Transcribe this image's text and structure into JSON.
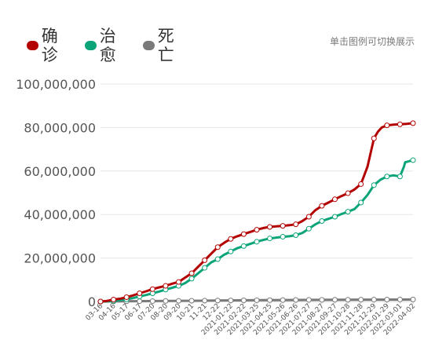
{
  "legend": {
    "items": [
      {
        "label": "确诊",
        "color": "#b30000"
      },
      {
        "label": "治愈",
        "color": "#0aa478"
      },
      {
        "label": "死亡",
        "color": "#7a7a7a"
      }
    ],
    "hint": "单击图例可切换展示"
  },
  "chart_data": {
    "type": "line",
    "y_ticks": [
      "0",
      "20,000,000",
      "40,000,000",
      "60,000,000",
      "80,000,000",
      "100,000,000"
    ],
    "ylim": [
      0,
      100000000
    ],
    "grid": true,
    "legend_position": "top-left",
    "x_labels": [
      "03-16",
      "04-16",
      "05-17",
      "06-17",
      "07-20",
      "08-20",
      "09-20",
      "10-21",
      "11-21",
      "12-22",
      "2021-01-22",
      "2021-02-22",
      "2021-03-25",
      "2021-04-25",
      "2021-05-26",
      "2021-06-26",
      "2021-07-27",
      "2021-08-27",
      "2021-09-27",
      "2021-10-28",
      "2021-11-28",
      "2021-12-29",
      "2022-01-29",
      "2022-03-01",
      "2022-04-02"
    ],
    "series": [
      {
        "name": "确诊",
        "color": "#b30000",
        "x": [
          0,
          0.5,
          1,
          1.5,
          2,
          2.5,
          3,
          3.5,
          4,
          4.5,
          5,
          5.5,
          6,
          6.5,
          7,
          7.5,
          8,
          8.5,
          9,
          9.5,
          10,
          10.5,
          11,
          11.5,
          12,
          12.5,
          13,
          13.5,
          14,
          14.5,
          15,
          15.5,
          16,
          16.5,
          17,
          17.5,
          18,
          18.5,
          19,
          19.5,
          20,
          20.5,
          21,
          21.3,
          21.6,
          22,
          22.5,
          23,
          23.5,
          24
        ],
        "values": [
          0,
          300000,
          900000,
          1300000,
          2000000,
          2800000,
          3800000,
          4700000,
          5700000,
          6500000,
          7200000,
          8200000,
          9000000,
          11000000,
          13000000,
          16000000,
          19000000,
          22000000,
          25000000,
          27000000,
          28800000,
          30000000,
          31000000,
          32000000,
          33000000,
          33800000,
          34300000,
          34600000,
          34800000,
          35100000,
          35500000,
          37000000,
          39000000,
          42000000,
          44000000,
          45500000,
          47000000,
          48500000,
          49800000,
          51500000,
          54000000,
          62000000,
          75000000,
          78000000,
          80000000,
          81000000,
          81300000,
          81500000,
          81700000,
          82000000
        ],
        "markers_x": [
          0,
          1,
          2,
          3,
          4,
          5,
          6,
          7,
          8,
          9,
          10,
          11,
          12,
          13,
          14,
          15,
          16,
          17,
          18,
          19,
          20,
          21,
          22,
          23,
          24
        ],
        "markers": [
          0,
          900000,
          2000000,
          3800000,
          5700000,
          7200000,
          9000000,
          13000000,
          19000000,
          25000000,
          28800000,
          31000000,
          33000000,
          34300000,
          34800000,
          35500000,
          39000000,
          44000000,
          47000000,
          49800000,
          54000000,
          75000000,
          81000000,
          81500000,
          82000000
        ]
      },
      {
        "name": "治愈",
        "color": "#0aa478",
        "x": [
          0,
          0.5,
          1,
          1.5,
          2,
          2.5,
          3,
          3.5,
          4,
          4.5,
          5,
          5.5,
          6,
          6.5,
          7,
          7.5,
          8,
          8.5,
          9,
          9.5,
          10,
          10.5,
          11,
          11.5,
          12,
          12.5,
          13,
          13.5,
          14,
          14.5,
          15,
          15.5,
          16,
          16.5,
          17,
          17.5,
          18,
          18.5,
          19,
          19.5,
          20,
          20.5,
          21,
          21.5,
          22,
          22.5,
          23,
          23.3,
          23.4,
          24
        ],
        "values": [
          0,
          100000,
          300000,
          600000,
          1000000,
          1600000,
          2300000,
          3000000,
          3800000,
          4600000,
          5500000,
          6300000,
          7200000,
          8500000,
          10500000,
          13000000,
          15500000,
          18000000,
          19500000,
          21500000,
          23000000,
          24500000,
          25500000,
          26500000,
          27500000,
          28300000,
          29000000,
          29400000,
          29800000,
          30000000,
          30500000,
          31500000,
          33500000,
          35500000,
          37000000,
          38000000,
          39000000,
          40200000,
          41300000,
          42500000,
          45500000,
          49000000,
          53500000,
          56000000,
          57500000,
          58000000,
          57500000,
          62000000,
          64000000,
          65000000
        ],
        "markers_x": [
          0,
          1,
          2,
          3,
          4,
          5,
          6,
          7,
          8,
          9,
          10,
          11,
          12,
          13,
          14,
          15,
          16,
          17,
          18,
          19,
          20,
          21,
          22,
          23,
          24
        ],
        "markers": [
          0,
          300000,
          1000000,
          2300000,
          3800000,
          5500000,
          7200000,
          10500000,
          15500000,
          19500000,
          23000000,
          25500000,
          27500000,
          29000000,
          29800000,
          30500000,
          33500000,
          37000000,
          39000000,
          41300000,
          45500000,
          53500000,
          57500000,
          57500000,
          65000000
        ]
      },
      {
        "name": "死亡",
        "color": "#7a7a7a",
        "x": [
          0,
          4,
          8,
          12,
          16,
          20,
          24
        ],
        "values": [
          0,
          200000,
          400000,
          600000,
          750000,
          850000,
          950000
        ],
        "markers_x": [
          0,
          1,
          2,
          3,
          4,
          5,
          6,
          7,
          8,
          9,
          10,
          11,
          12,
          13,
          14,
          15,
          16,
          17,
          18,
          19,
          20,
          21,
          22,
          23,
          24
        ],
        "markers": [
          0,
          50000,
          100000,
          150000,
          200000,
          250000,
          300000,
          350000,
          400000,
          450000,
          500000,
          550000,
          600000,
          640000,
          680000,
          720000,
          750000,
          780000,
          800000,
          820000,
          850000,
          880000,
          900000,
          930000,
          950000
        ]
      }
    ]
  }
}
